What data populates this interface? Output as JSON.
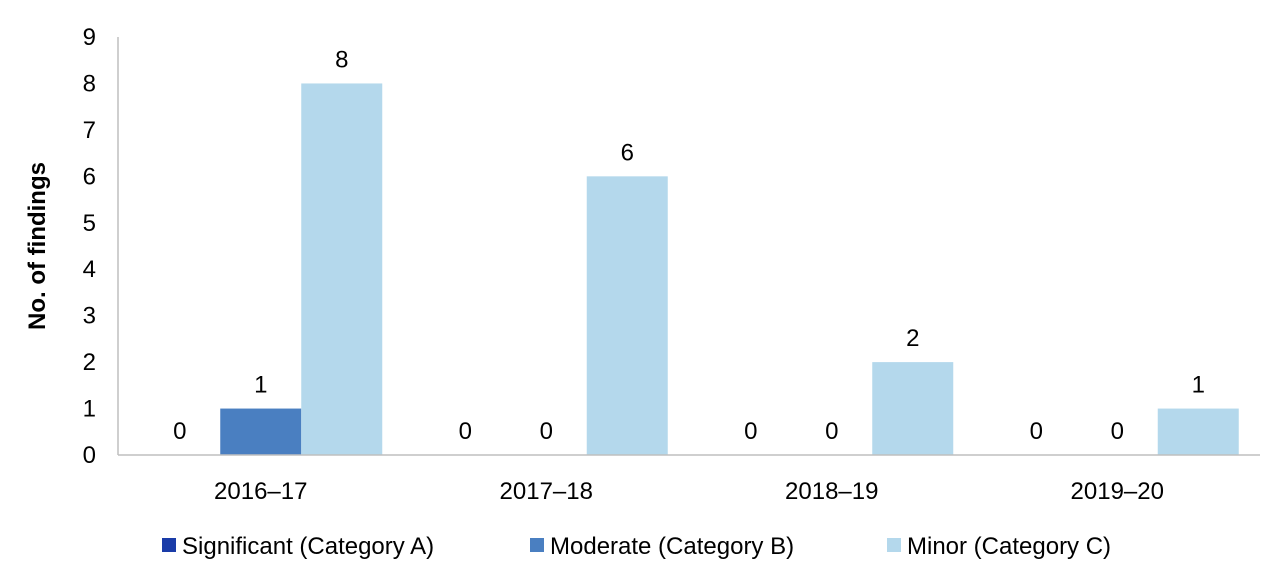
{
  "chart_data": {
    "type": "bar",
    "title": "",
    "xlabel": "",
    "ylabel": "No. of findings",
    "ylim": [
      0,
      9
    ],
    "yticks": [
      0,
      1,
      2,
      3,
      4,
      5,
      6,
      7,
      8,
      9
    ],
    "categories": [
      "2016–17",
      "2017–18",
      "2018–19",
      "2019–20"
    ],
    "series": [
      {
        "name": "Significant (Category A)",
        "color": "#1a3ca8",
        "values": [
          0,
          0,
          0,
          0
        ]
      },
      {
        "name": "Moderate (Category B)",
        "color": "#4a7fc1",
        "values": [
          1,
          0,
          0,
          0
        ]
      },
      {
        "name": "Minor (Category C)",
        "color": "#b4d8ec",
        "values": [
          8,
          6,
          2,
          1
        ]
      }
    ],
    "data_labels": true,
    "grid": false,
    "legend_position": "bottom"
  }
}
